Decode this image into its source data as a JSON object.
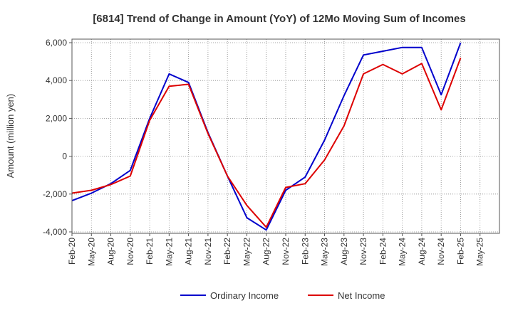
{
  "chart_data": {
    "type": "line",
    "title": "[6814]  Trend of Change in Amount (YoY) of 12Mo Moving Sum of Incomes",
    "xlabel": "",
    "ylabel": "Amount (million yen)",
    "ylim": [
      -4000,
      6000
    ],
    "yticks": [
      -4000,
      -2000,
      0,
      2000,
      4000,
      6000
    ],
    "ytick_labels": [
      "-4,000",
      "-2,000",
      "0",
      "2,000",
      "4,000",
      "6,000"
    ],
    "x": [
      "Feb-20",
      "May-20",
      "Aug-20",
      "Nov-20",
      "Feb-21",
      "May-21",
      "Aug-21",
      "Nov-21",
      "Feb-22",
      "May-22",
      "Aug-22",
      "Nov-22",
      "Feb-23",
      "May-23",
      "Aug-23",
      "Nov-23",
      "Feb-24",
      "May-24",
      "Aug-24",
      "Nov-24",
      "Feb-25",
      "May-25"
    ],
    "grid": true,
    "legend_position": "bottom",
    "series": [
      {
        "name": "Ordinary Income",
        "color": "#0000cc",
        "values": [
          -2350,
          -1950,
          -1450,
          -750,
          2000,
          4350,
          3900,
          1250,
          -1050,
          -3250,
          -3900,
          -1800,
          -1100,
          850,
          3200,
          5350,
          5550,
          5750,
          5750,
          3250,
          6000,
          null
        ]
      },
      {
        "name": "Net Income",
        "color": "#dd0000",
        "values": [
          -1950,
          -1800,
          -1500,
          -1050,
          1900,
          3700,
          3800,
          1200,
          -1050,
          -2600,
          -3750,
          -1650,
          -1450,
          -200,
          1600,
          4350,
          4850,
          4350,
          4900,
          2450,
          5200,
          null
        ]
      }
    ]
  }
}
